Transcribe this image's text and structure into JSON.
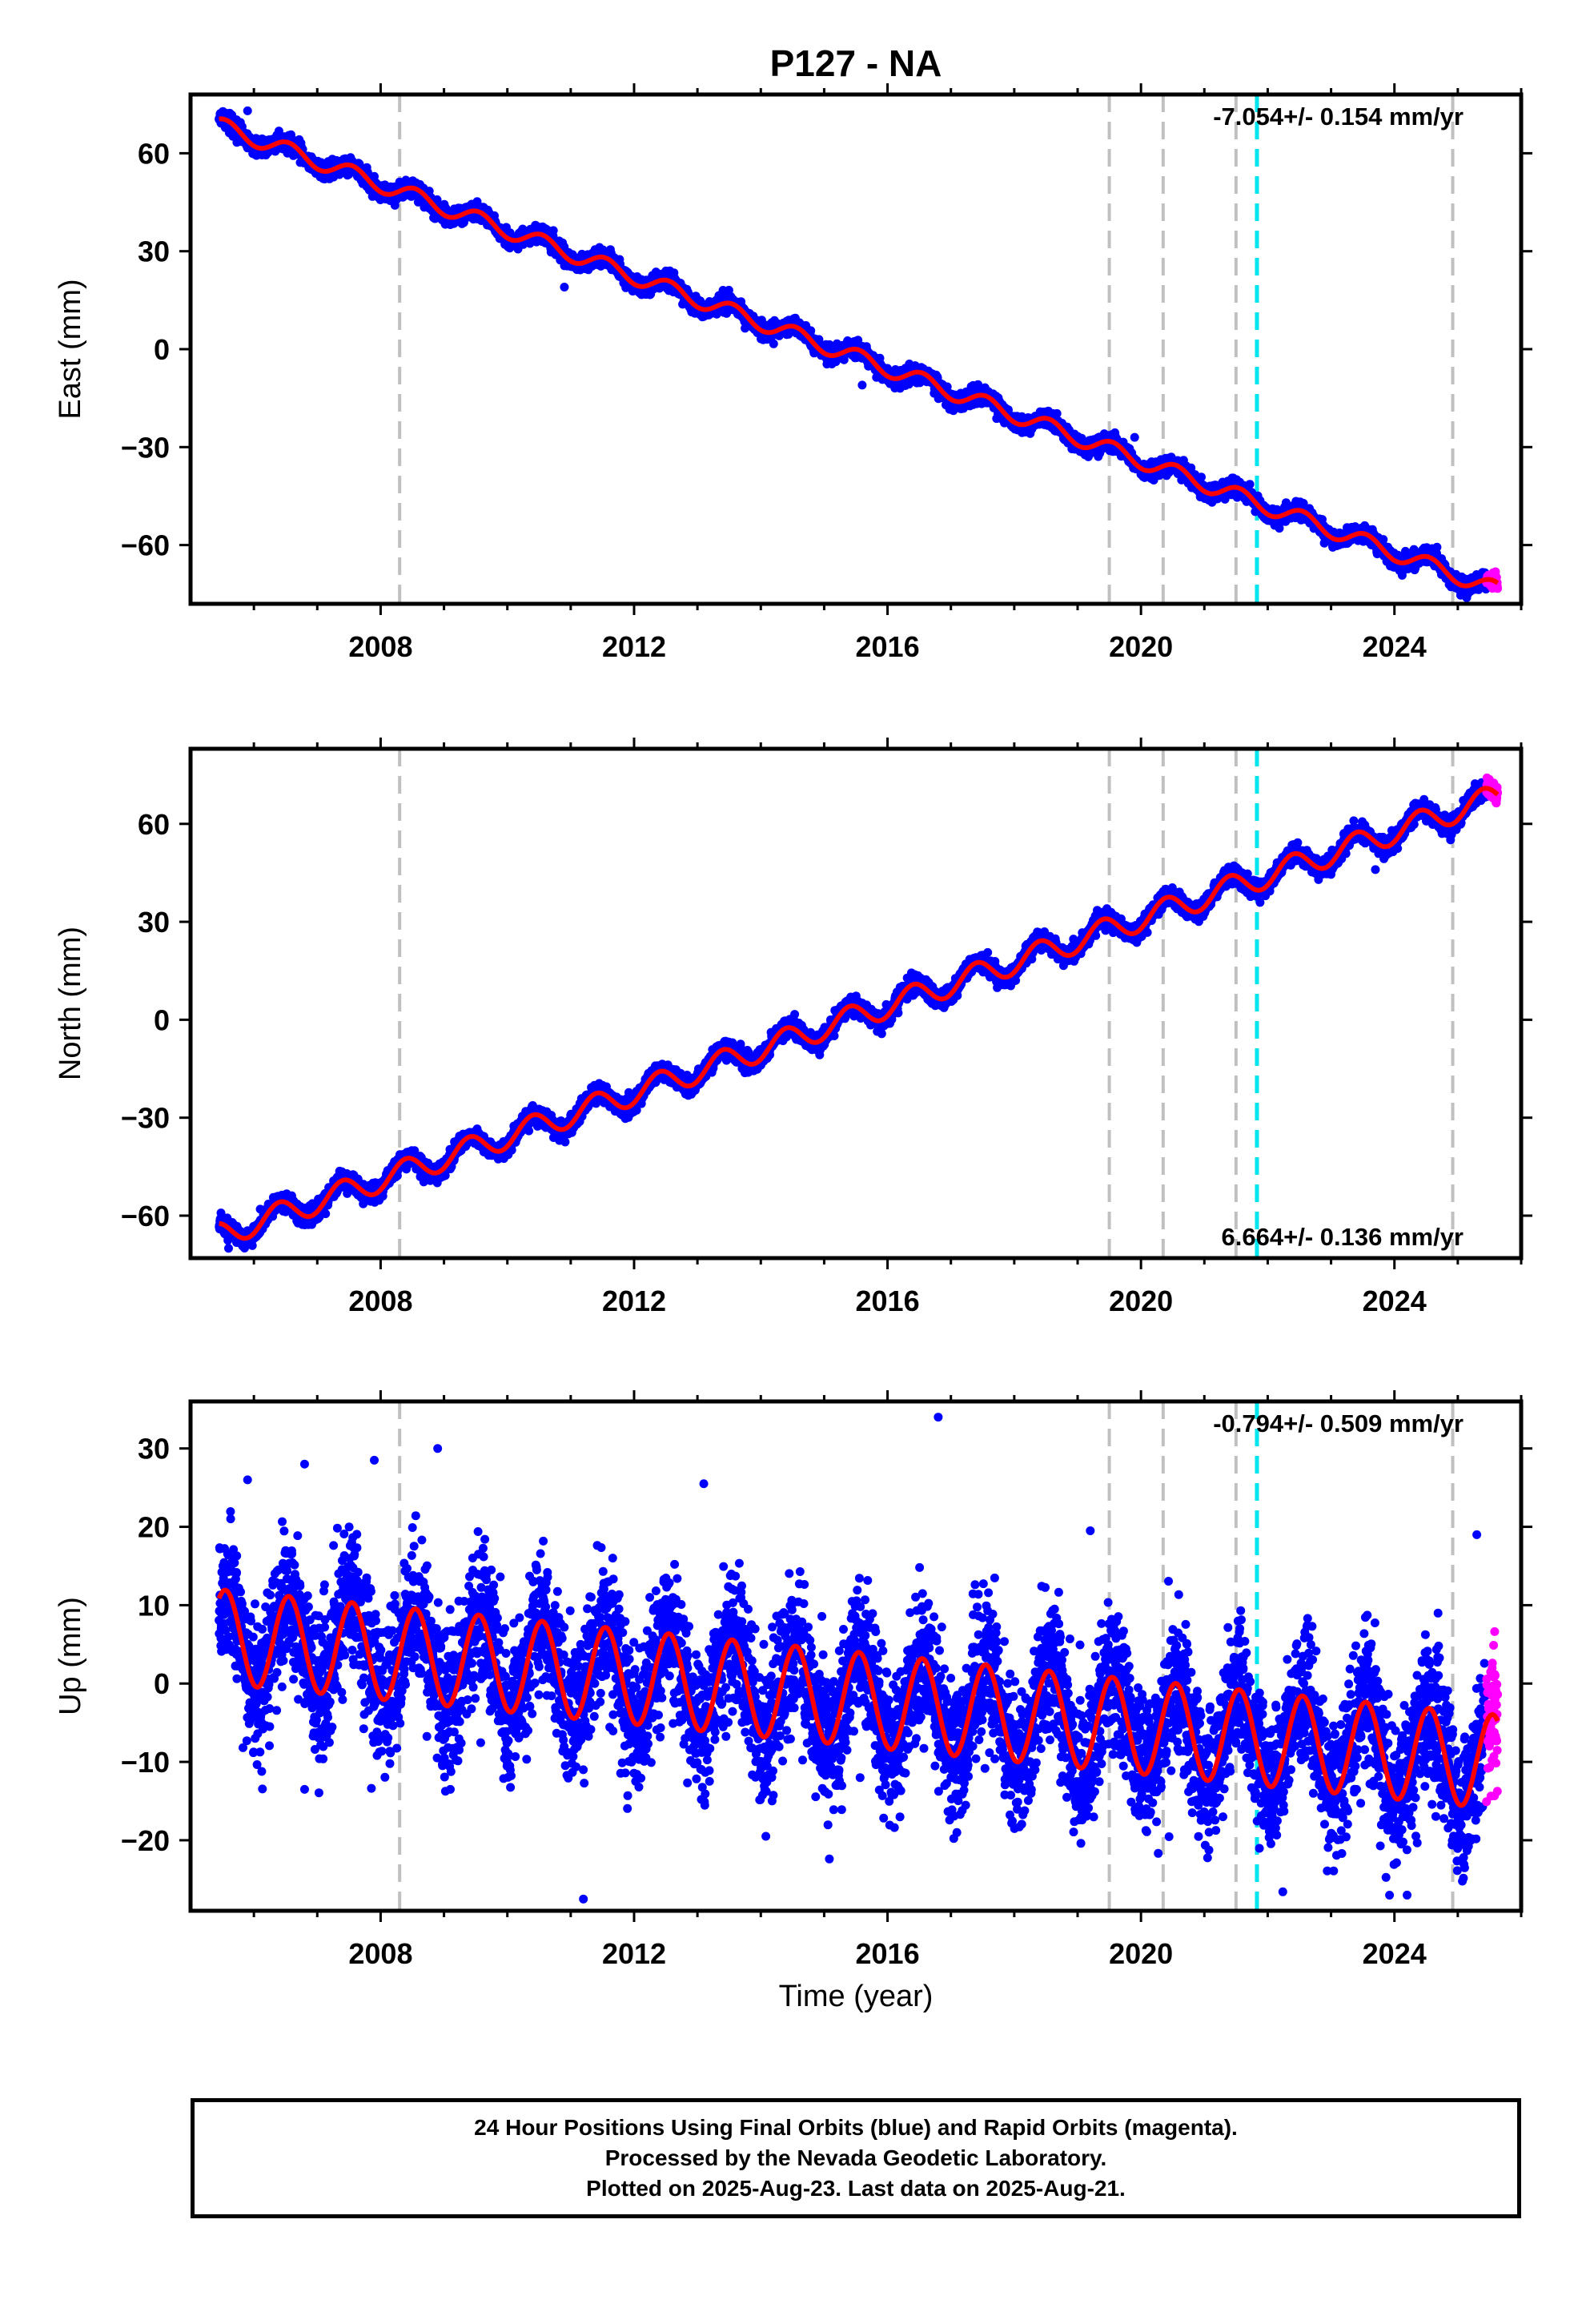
{
  "title": "P127 - NA",
  "xlabel": "Time (year)",
  "footer": {
    "lines": [
      "24 Hour Positions Using Final Orbits (blue) and Rapid Orbits (magenta).",
      "Processed by the Nevada Geodetic Laboratory.",
      "Plotted on 2025-Aug-23. Last data on 2025-Aug-21."
    ]
  },
  "colors": {
    "final_orbits": "#0000ff",
    "rapid_orbits": "#ff00ff",
    "model_fit": "#ff0000",
    "equipment_change_lines": "#c0c0c0",
    "event_line": "#00e5ee"
  },
  "chart_data": [
    {
      "type": "scatter",
      "ylabel": "East (mm)",
      "rate_label": "-7.054+/- 0.154 mm/yr",
      "rate_label_position": "top-right",
      "xlim": [
        2005.0,
        2026.0
      ],
      "ylim": [
        -78,
        78
      ],
      "xticks": [
        2008,
        2012,
        2016,
        2020,
        2024
      ],
      "yticks": [
        60,
        30,
        0,
        -30,
        -60
      ],
      "ytick_labels": [
        "60",
        "30",
        "0",
        "−30",
        "−60"
      ],
      "grey_lines": [
        2008.3,
        2019.5,
        2020.35,
        2021.5,
        2024.92
      ],
      "cyan_line": 2021.83,
      "data_start": 2005.45,
      "data_end": 2025.63,
      "rapid_start": 2025.45,
      "model": {
        "start_value": 68.5,
        "rate": -7.054,
        "annual_amplitude": 2.5,
        "annual_phase": 0.3,
        "noise": 1.2
      },
      "outliers": [
        {
          "x": 2005.9,
          "y": 73
        },
        {
          "x": 2010.9,
          "y": 19
        },
        {
          "x": 2015.6,
          "y": -11
        },
        {
          "x": 2019.9,
          "y": -27
        },
        {
          "x": 2023.7,
          "y": -59
        }
      ],
      "series": [
        {
          "name": "Final Orbits (blue)",
          "role": "final"
        },
        {
          "name": "Rapid Orbits (magenta)",
          "role": "rapid"
        }
      ]
    },
    {
      "type": "scatter",
      "ylabel": "North (mm)",
      "rate_label": "6.664+/- 0.136 mm/yr",
      "rate_label_position": "bottom-right",
      "xlim": [
        2005.0,
        2026.0
      ],
      "ylim": [
        -73,
        83
      ],
      "xticks": [
        2008,
        2012,
        2016,
        2020,
        2024
      ],
      "yticks": [
        60,
        30,
        0,
        -30,
        -60
      ],
      "ytick_labels": [
        "60",
        "30",
        "0",
        "−30",
        "−60"
      ],
      "grey_lines": [
        2008.3,
        2019.5,
        2020.35,
        2021.5,
        2024.92
      ],
      "cyan_line": 2021.83,
      "data_start": 2005.45,
      "data_end": 2025.63,
      "rapid_start": 2025.45,
      "model": {
        "start_value": -66,
        "rate": 6.664,
        "annual_amplitude": 3.8,
        "annual_phase": 0.15,
        "noise": 1.3
      },
      "outliers": [
        {
          "x": 2005.6,
          "y": -70
        },
        {
          "x": 2006.1,
          "y": -58
        },
        {
          "x": 2023.7,
          "y": 46
        },
        {
          "x": 2016.7,
          "y": 5
        }
      ],
      "series": [
        {
          "name": "Final Orbits (blue)",
          "role": "final"
        },
        {
          "name": "Rapid Orbits (magenta)",
          "role": "rapid"
        }
      ]
    },
    {
      "type": "scatter",
      "ylabel": "Up (mm)",
      "rate_label": "-0.794+/- 0.509 mm/yr",
      "rate_label_position": "top-right",
      "xlim": [
        2005.0,
        2026.0
      ],
      "ylim": [
        -29,
        36
      ],
      "xticks": [
        2008,
        2012,
        2016,
        2020,
        2024
      ],
      "yticks": [
        30,
        20,
        10,
        0,
        -10,
        -20
      ],
      "ytick_labels": [
        "30",
        "20",
        "10",
        "0",
        "−10",
        "−20"
      ],
      "grey_lines": [
        2008.3,
        2019.5,
        2020.35,
        2021.5,
        2024.92
      ],
      "cyan_line": 2021.83,
      "data_start": 2005.45,
      "data_end": 2025.63,
      "rapid_start": 2025.45,
      "model": {
        "start_value": 6,
        "rate": -0.794,
        "annual_amplitude": 6.0,
        "annual_phase": 0.3,
        "noise": 4.5
      },
      "outliers": [
        {
          "x": 2005.9,
          "y": 26
        },
        {
          "x": 2006.8,
          "y": 28
        },
        {
          "x": 2007.9,
          "y": 28.5
        },
        {
          "x": 2008.9,
          "y": 30
        },
        {
          "x": 2016.8,
          "y": 34
        },
        {
          "x": 2011.2,
          "y": -27.5
        },
        {
          "x": 2006.8,
          "y": -13.5
        },
        {
          "x": 2009.1,
          "y": -13.5
        },
        {
          "x": 2024.2,
          "y": -27
        },
        {
          "x": 2025.3,
          "y": 19
        },
        {
          "x": 2013.1,
          "y": 25.5
        },
        {
          "x": 2019.2,
          "y": 19.5
        }
      ],
      "series": [
        {
          "name": "Final Orbits (blue)",
          "role": "final"
        },
        {
          "name": "Rapid Orbits (magenta)",
          "role": "rapid"
        }
      ]
    }
  ]
}
